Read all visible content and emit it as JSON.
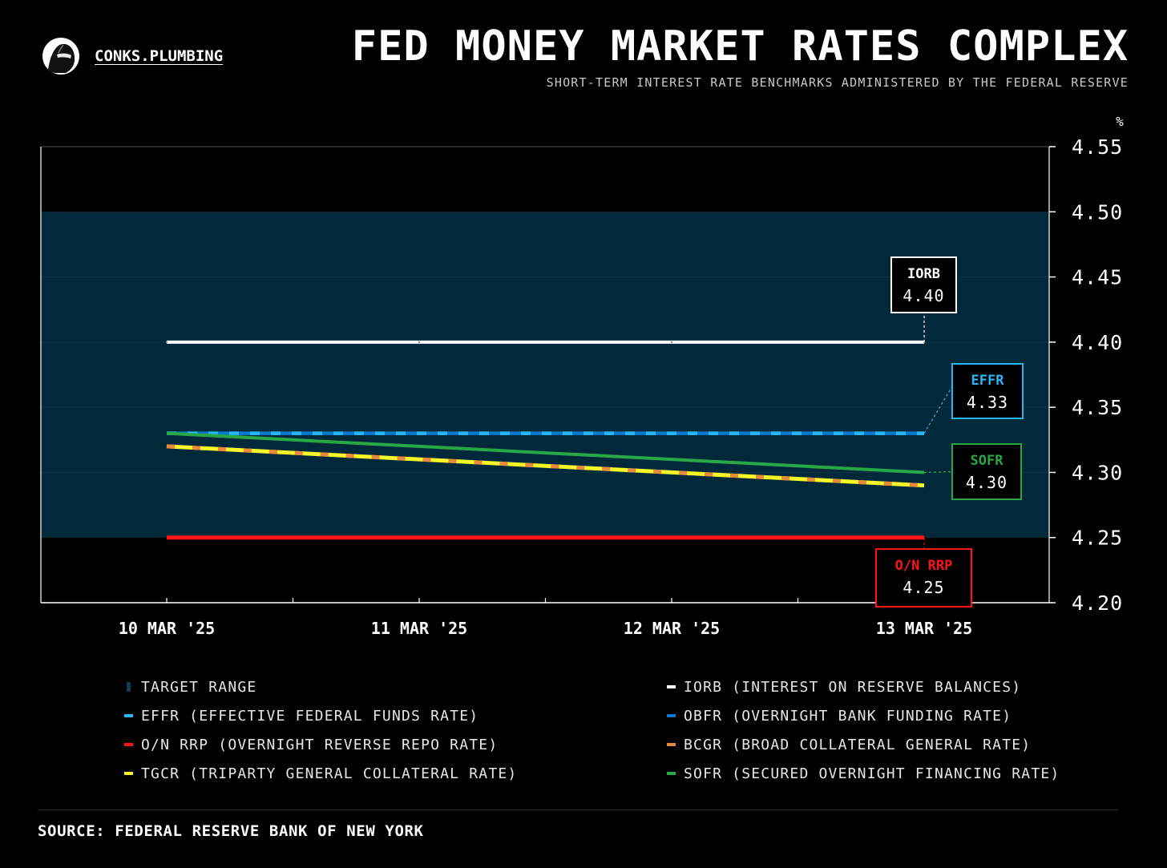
{
  "header": {
    "brand": "CONKS.PLUMBING",
    "title": "FED MONEY MARKET RATES COMPLEX",
    "subtitle": "SHORT-TERM INTEREST RATE BENCHMARKS ADMINISTERED BY THE FEDERAL RESERVE"
  },
  "chart_data": {
    "type": "line",
    "title": "FED MONEY MARKET RATES COMPLEX",
    "subtitle": "SHORT-TERM INTEREST RATE BENCHMARKS ADMINISTERED BY THE FEDERAL RESERVE",
    "x": [
      "10 MAR '25",
      "11 MAR '25",
      "12 MAR '25",
      "13 MAR '25"
    ],
    "ylabel": "%",
    "ylim": [
      4.2,
      4.55
    ],
    "yticks": [
      "4.55",
      "4.50",
      "4.45",
      "4.40",
      "4.35",
      "4.30",
      "4.25",
      "4.20"
    ],
    "target_range": [
      4.25,
      4.5
    ],
    "series": [
      {
        "key": "iorb",
        "name": "IORB (INTEREST ON RESERVE BALANCES)",
        "values": [
          4.4,
          4.4,
          4.4,
          4.4
        ],
        "color": "#ffffff",
        "style": "solid"
      },
      {
        "key": "obfr",
        "name": "OBFR (OVERNIGHT BANK FUNDING RATE)",
        "values": [
          4.33,
          4.33,
          4.33,
          4.33
        ],
        "color": "#0b78d0",
        "style": "solid"
      },
      {
        "key": "effr",
        "name": "EFFR (EFFECTIVE FEDERAL FUNDS RATE)",
        "values": [
          4.33,
          4.33,
          4.33,
          4.33
        ],
        "color": "#29b6f6",
        "style": "dashed"
      },
      {
        "key": "sofr",
        "name": "SOFR (SECURED OVERNIGHT FINANCING RATE)",
        "values": [
          4.33,
          4.32,
          4.31,
          4.3
        ],
        "color": "#27a844",
        "style": "solid"
      },
      {
        "key": "tgcr",
        "name": "TGCR (TRIPARTY GENERAL COLLATERAL RATE)",
        "values": [
          4.32,
          4.31,
          4.3,
          4.29
        ],
        "color": "#f5f52a",
        "style": "solid"
      },
      {
        "key": "bcgr",
        "name": "BCGR (BROAD COLLATERAL GENERAL RATE)",
        "values": [
          4.32,
          4.31,
          4.3,
          4.29
        ],
        "color": "#e8883a",
        "style": "dashed"
      },
      {
        "key": "onrrp",
        "name": "O/N RRP (OVERNIGHT REVERSE REPO RATE)",
        "values": [
          4.25,
          4.25,
          4.25,
          4.25
        ],
        "color": "#ff1414",
        "style": "solid"
      }
    ],
    "callouts": [
      {
        "key": "iorb",
        "label": "IORB",
        "value": "4.40",
        "color": "#ffffff"
      },
      {
        "key": "effr",
        "label": "EFFR",
        "value": "4.33",
        "color": "#29b6f6"
      },
      {
        "key": "sofr",
        "label": "SOFR",
        "value": "4.30",
        "color": "#27a844"
      },
      {
        "key": "onrrp",
        "label": "O/N RRP",
        "value": "4.25",
        "color": "#ff1414"
      }
    ],
    "colors": {
      "target_range": "#02293a",
      "background": "#000000",
      "axis": "#ffffff"
    }
  },
  "legend": [
    {
      "key": "range",
      "label": "TARGET RANGE",
      "color": "#0f3f55",
      "style": "range"
    },
    {
      "key": "iorb",
      "label": "IORB (INTEREST ON RESERVE BALANCES)",
      "color": "#ffffff",
      "style": "line"
    },
    {
      "key": "effr",
      "label": "EFFR (EFFECTIVE FEDERAL FUNDS RATE)",
      "color": "#29b6f6",
      "style": "line"
    },
    {
      "key": "obfr",
      "label": "OBFR (OVERNIGHT BANK FUNDING RATE)",
      "color": "#0b78d0",
      "style": "line"
    },
    {
      "key": "onrrp",
      "label": "O/N RRP (OVERNIGHT REVERSE REPO RATE)",
      "color": "#ff1414",
      "style": "line"
    },
    {
      "key": "bcgr",
      "label": "BCGR (BROAD COLLATERAL GENERAL RATE)",
      "color": "#e8883a",
      "style": "line"
    },
    {
      "key": "tgcr",
      "label": "TGCR (TRIPARTY GENERAL COLLATERAL RATE)",
      "color": "#f5f52a",
      "style": "line"
    },
    {
      "key": "sofr",
      "label": "SOFR (SECURED OVERNIGHT FINANCING RATE)",
      "color": "#27a844",
      "style": "line"
    }
  ],
  "footer": {
    "source": "SOURCE: FEDERAL RESERVE BANK OF NEW YORK"
  }
}
